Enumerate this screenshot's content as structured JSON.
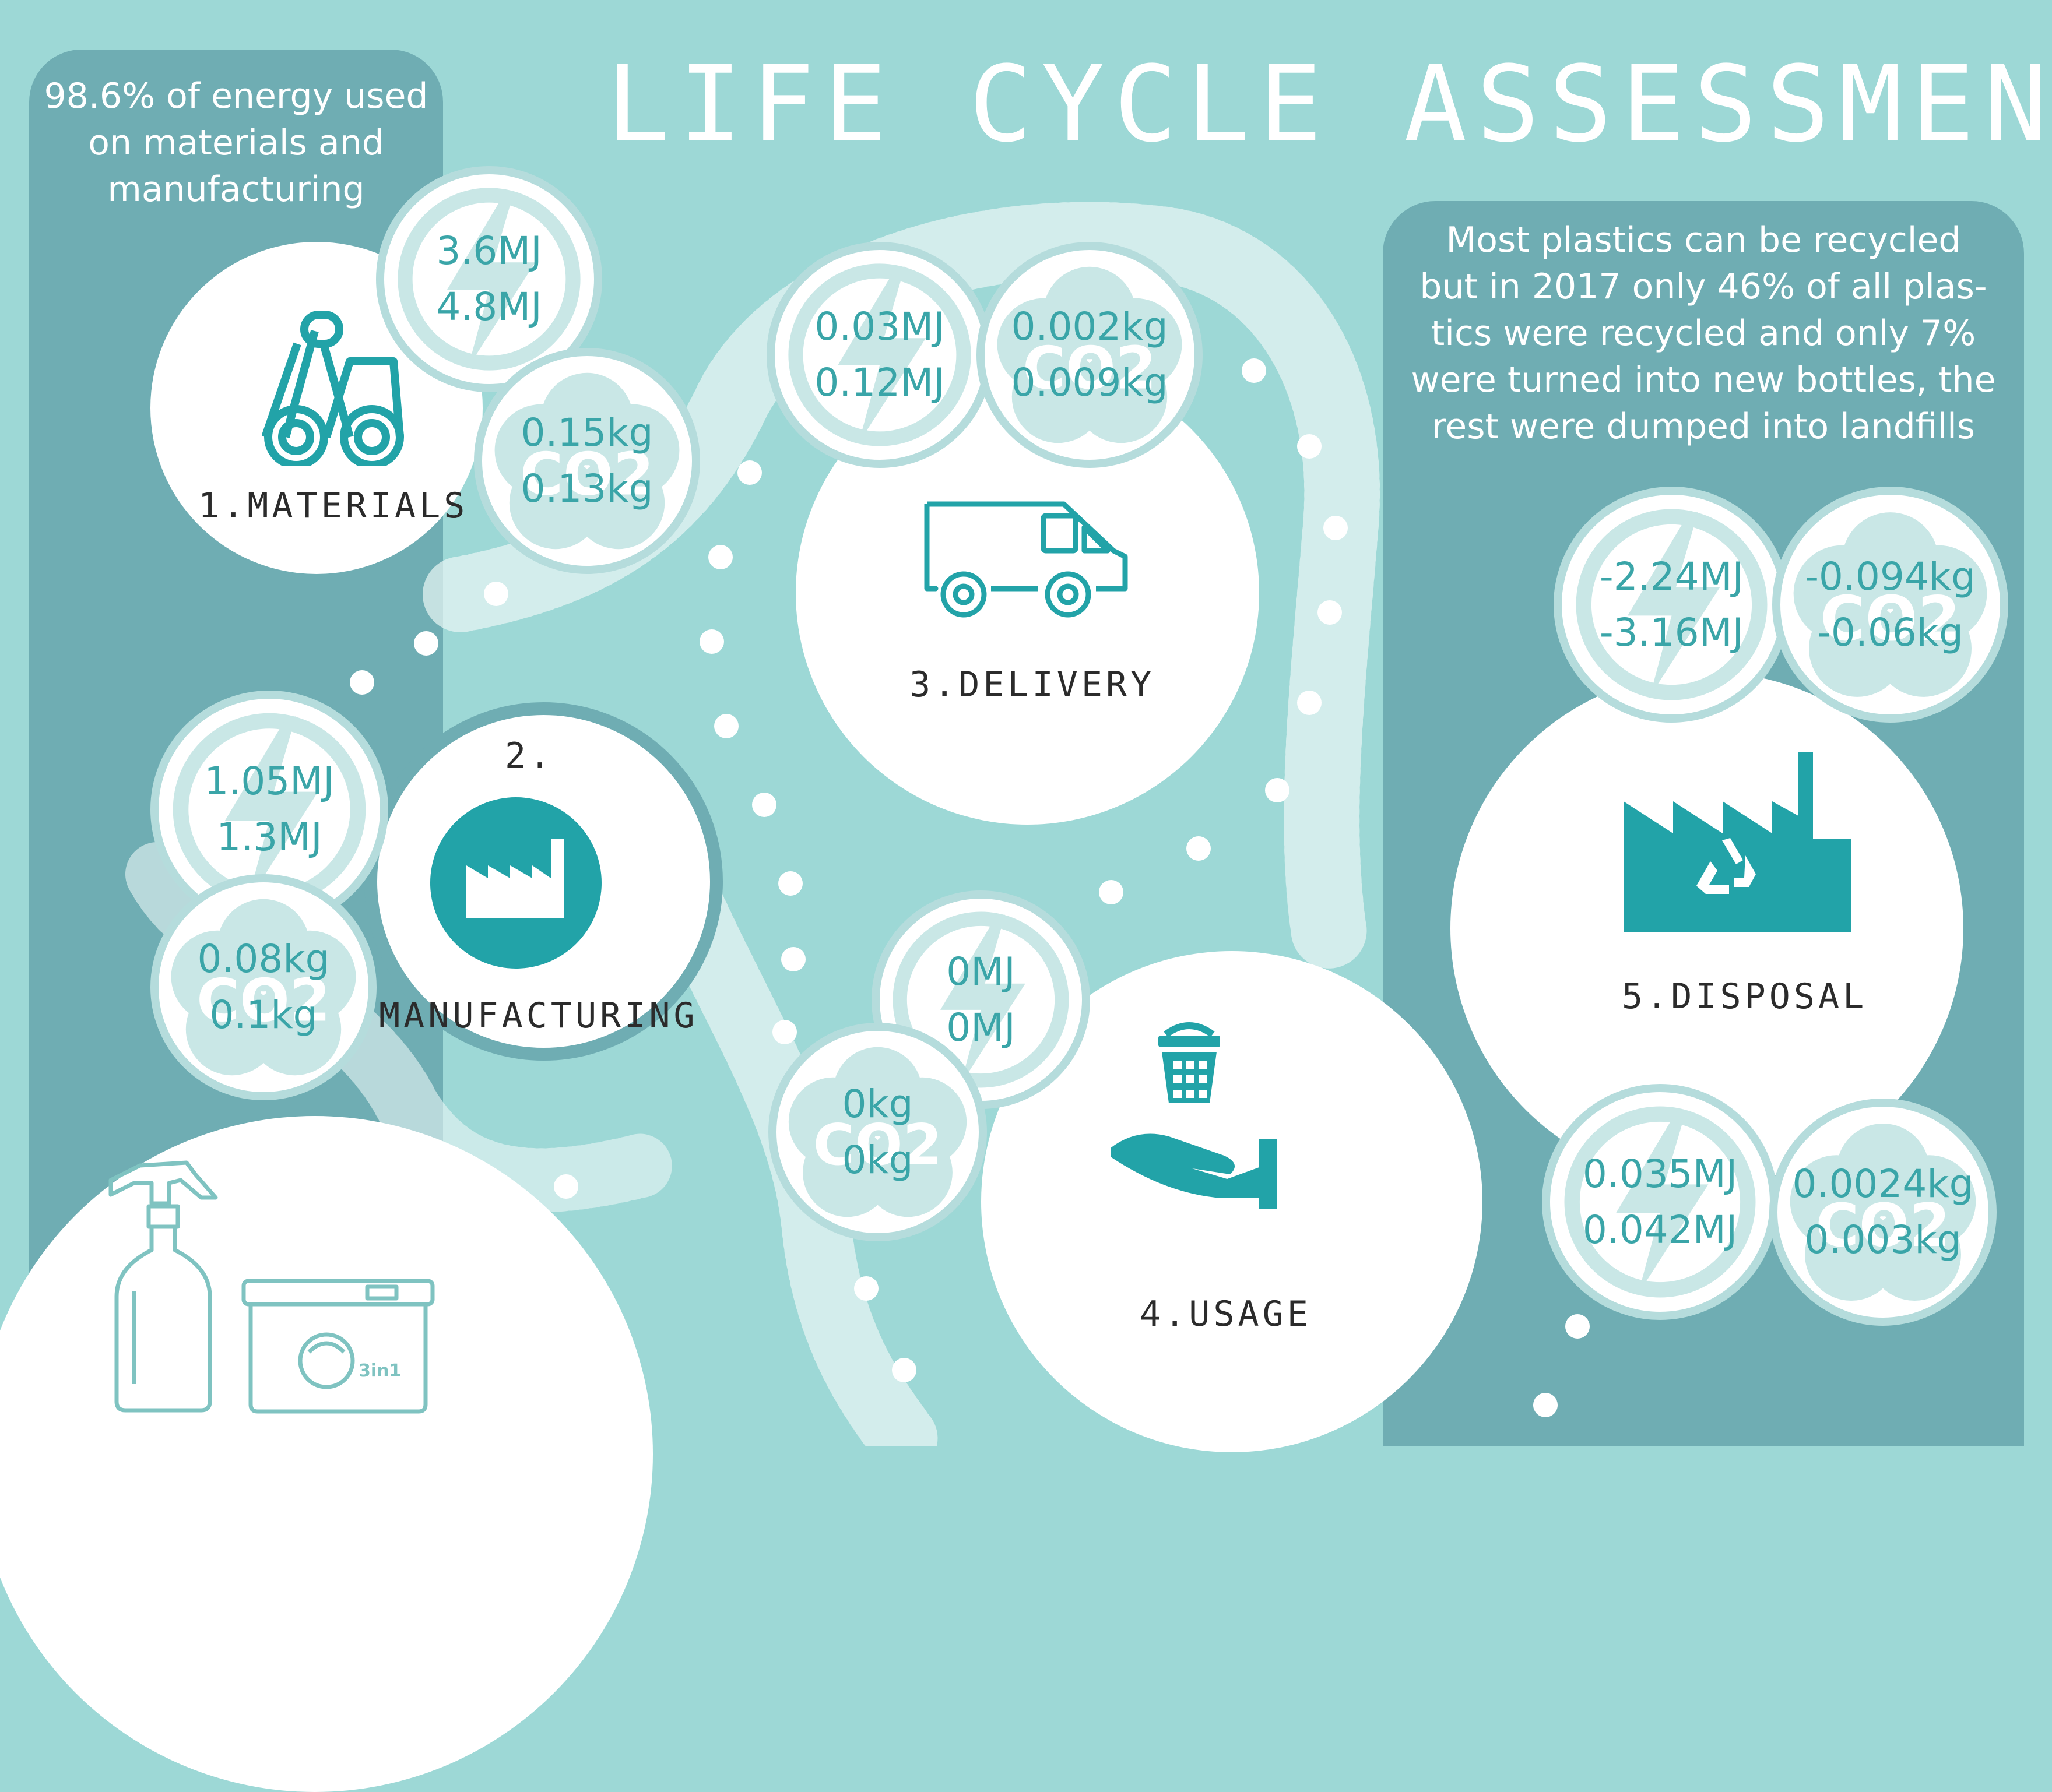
{
  "title": "LIFE CYCLE ASSESSMENT",
  "left_note": [
    "98.6% of energy used",
    "on materials and",
    "manufacturing"
  ],
  "right_note": [
    "Most plastics can be recycled",
    "but in 2017 only 46% of all plas-",
    "tics were recycled and only 7%",
    "were turned into new bottles, the",
    "rest were dumped into landfills"
  ],
  "stages": {
    "materials": {
      "label": "1.MATERIALS",
      "energy": [
        "3.6MJ",
        "4.8MJ"
      ],
      "co2": [
        "0.15kg",
        "0.13kg"
      ]
    },
    "manufacturing": {
      "number": "2.",
      "label": "MANUFACTURING",
      "energy": [
        "1.05MJ",
        "1.3MJ"
      ],
      "co2": [
        "0.08kg",
        "0.1kg"
      ]
    },
    "delivery": {
      "label": "3.DELIVERY",
      "energy": [
        "0.03MJ",
        "0.12MJ"
      ],
      "co2": [
        "0.002kg",
        "0.009kg"
      ]
    },
    "usage": {
      "label": "4.USAGE",
      "energy": [
        "0MJ",
        "0MJ"
      ],
      "co2": [
        "0kg",
        "0kg"
      ]
    },
    "disposal": {
      "label": "5.DISPOSAL",
      "energy": [
        "-2.24MJ",
        "-3.16MJ"
      ],
      "co2": [
        "-0.094kg",
        "-0.06kg"
      ],
      "energy_2": [
        "0.035MJ",
        "0.042MJ"
      ],
      "co2_2": [
        "0.0024kg",
        "0.003kg"
      ]
    }
  },
  "pod_box_text": "3in1",
  "colors": {
    "background": "#9dd8d6",
    "panel": "#6fadb3",
    "teal": "#22a3a8",
    "value_text": "#3aa5a8",
    "ring": "#b5dcdc"
  },
  "icons": [
    "lightning-icon",
    "co2-cloud-icon",
    "pipes-icon",
    "factory-icon",
    "delivery-van-icon",
    "basket-hand-icon",
    "recycling-factory-icon",
    "spray-bottle-icon",
    "pod-box-icon"
  ]
}
